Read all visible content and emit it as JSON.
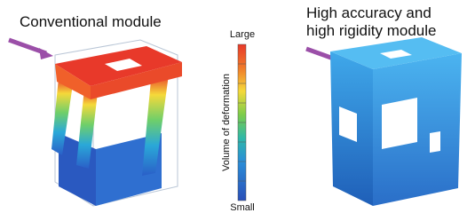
{
  "left_label": "Conventional module",
  "right_label": [
    "High accuracy and",
    "high rigidity module"
  ],
  "scale": {
    "title": "Volume of deformation",
    "max_label": "Large",
    "min_label": "Small"
  }
}
